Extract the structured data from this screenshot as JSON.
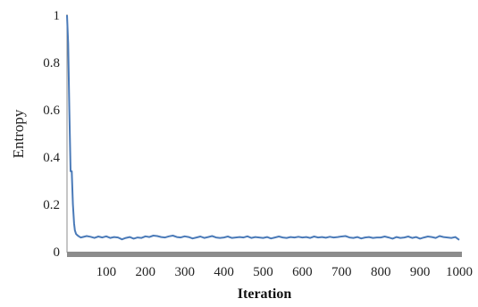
{
  "chart_data": {
    "type": "line",
    "title": "",
    "xlabel": "Iteration",
    "ylabel": "Entropy",
    "xlim": [
      0,
      1000
    ],
    "ylim": [
      0,
      1
    ],
    "x_ticks": [
      "100",
      "200",
      "300",
      "400",
      "500",
      "600",
      "700",
      "800",
      "900",
      "1000"
    ],
    "y_ticks": [
      "0",
      "0.2",
      "0.4",
      "0.6",
      "0.8",
      "1"
    ],
    "grid": false,
    "legend": "none",
    "colors": {
      "line": "#4a7ab8",
      "x_axis": "#8c8c8c",
      "y_axis": "#8c8c8c"
    },
    "series": [
      {
        "x": [
          0,
          3,
          6,
          9,
          12,
          15,
          18,
          20,
          23,
          26,
          30,
          35,
          40,
          50,
          60,
          70,
          80,
          90,
          100,
          110,
          120,
          130,
          140,
          150,
          160,
          170,
          180,
          190,
          200,
          210,
          220,
          230,
          240,
          250,
          260,
          270,
          280,
          290,
          300,
          310,
          320,
          330,
          340,
          350,
          360,
          370,
          380,
          390,
          400,
          410,
          420,
          430,
          440,
          450,
          460,
          470,
          480,
          490,
          500,
          510,
          520,
          530,
          540,
          550,
          560,
          570,
          580,
          590,
          600,
          610,
          620,
          630,
          640,
          650,
          660,
          670,
          680,
          690,
          700,
          710,
          720,
          730,
          740,
          750,
          760,
          770,
          780,
          790,
          800,
          810,
          820,
          830,
          840,
          850,
          860,
          870,
          880,
          890,
          900,
          910,
          920,
          930,
          940,
          950,
          960,
          970,
          980,
          990,
          1000
        ],
        "values": [
          1.0,
          0.88,
          0.6,
          0.34,
          0.34,
          0.2,
          0.12,
          0.09,
          0.075,
          0.07,
          0.065,
          0.06,
          0.062,
          0.066,
          0.063,
          0.058,
          0.064,
          0.06,
          0.065,
          0.058,
          0.062,
          0.06,
          0.052,
          0.058,
          0.062,
          0.055,
          0.06,
          0.058,
          0.065,
          0.062,
          0.068,
          0.066,
          0.062,
          0.06,
          0.065,
          0.068,
          0.062,
          0.06,
          0.065,
          0.062,
          0.056,
          0.06,
          0.064,
          0.058,
          0.062,
          0.066,
          0.06,
          0.058,
          0.06,
          0.064,
          0.058,
          0.06,
          0.062,
          0.06,
          0.065,
          0.058,
          0.062,
          0.06,
          0.058,
          0.062,
          0.056,
          0.06,
          0.064,
          0.06,
          0.058,
          0.062,
          0.06,
          0.063,
          0.06,
          0.062,
          0.058,
          0.064,
          0.06,
          0.062,
          0.059,
          0.063,
          0.06,
          0.062,
          0.064,
          0.066,
          0.06,
          0.058,
          0.062,
          0.056,
          0.06,
          0.062,
          0.058,
          0.06,
          0.06,
          0.064,
          0.06,
          0.055,
          0.062,
          0.058,
          0.06,
          0.064,
          0.058,
          0.062,
          0.055,
          0.06,
          0.064,
          0.062,
          0.058,
          0.066,
          0.062,
          0.06,
          0.058,
          0.062,
          0.05
        ]
      }
    ]
  }
}
